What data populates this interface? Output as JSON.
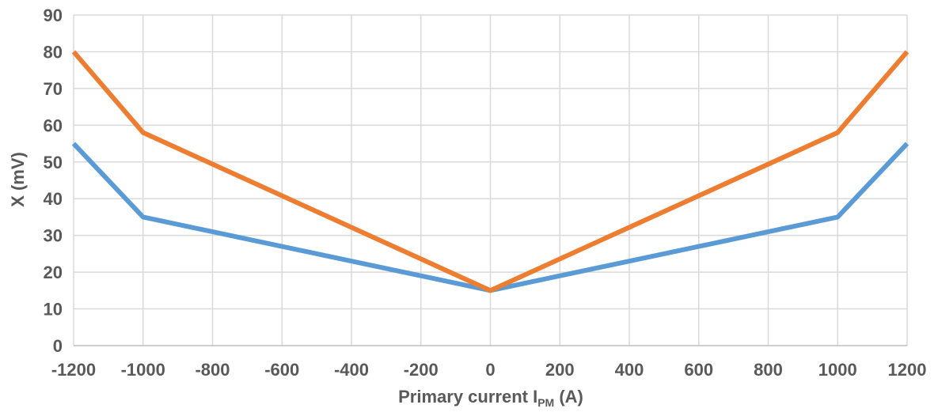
{
  "chart_data": {
    "type": "line",
    "title": "",
    "xlabel": {
      "main": "Primary current I",
      "subscript": "PM",
      "suffix": " (A)"
    },
    "ylabel": "X (mV)",
    "xlim": [
      -1200,
      1200
    ],
    "ylim": [
      0,
      90
    ],
    "x_ticks": [
      -1200,
      -1000,
      -800,
      -600,
      -400,
      -200,
      0,
      200,
      400,
      600,
      800,
      1000,
      1200
    ],
    "y_ticks": [
      0,
      10,
      20,
      30,
      40,
      50,
      60,
      70,
      80,
      90
    ],
    "grid": true,
    "legend": "none",
    "x": [
      -1200,
      -1000,
      0,
      1000,
      1200
    ],
    "series": [
      {
        "color": "#5b9bd5",
        "values": [
          55,
          35,
          15,
          35,
          55
        ]
      },
      {
        "color": "#ed7d31",
        "values": [
          80,
          58,
          15,
          58,
          80
        ]
      }
    ]
  }
}
